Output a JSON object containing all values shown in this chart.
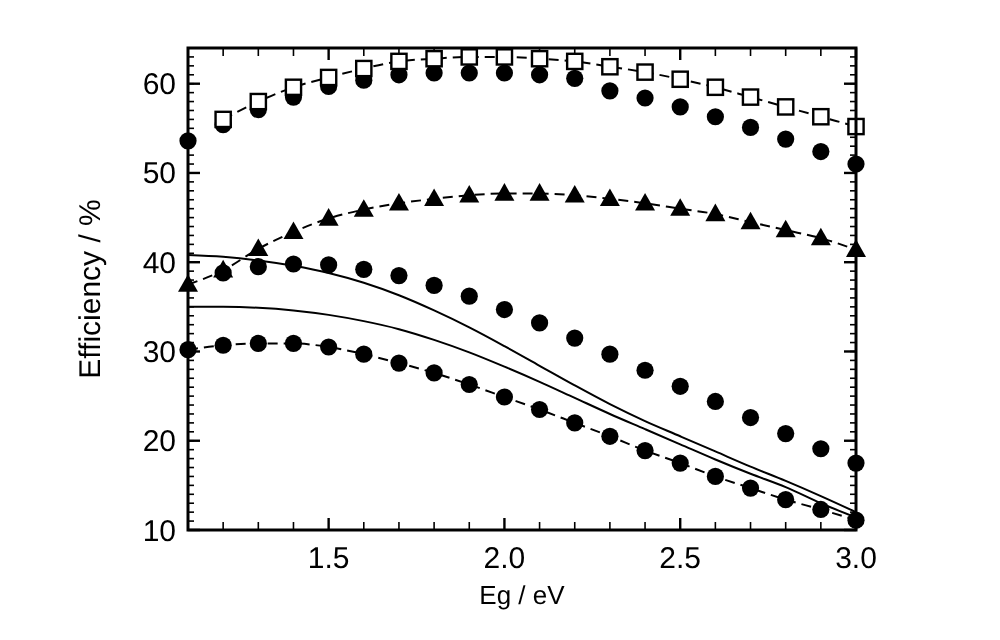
{
  "chart_data": {
    "type": "line",
    "xlabel": "Eg / eV",
    "ylabel": "Efficiency / %",
    "x": [
      1.1,
      1.2,
      1.3,
      1.4,
      1.5,
      1.6,
      1.7,
      1.8,
      1.9,
      2.0,
      2.1,
      2.2,
      2.3,
      2.4,
      2.5,
      2.6,
      2.7,
      2.8,
      2.9,
      3.0
    ],
    "xlim": [
      1.1,
      3.0
    ],
    "ylim": [
      10,
      64
    ],
    "xticks": [
      {
        "value": 1.2,
        "label": null
      },
      {
        "value": 1.3,
        "label": null
      },
      {
        "value": 1.4,
        "label": null
      },
      1.5,
      {
        "value": 1.6,
        "label": null
      },
      {
        "value": 1.7,
        "label": null
      },
      {
        "value": 1.8,
        "label": null
      },
      {
        "value": 1.9,
        "label": null
      },
      {
        "value": 2,
        "label": "2.0"
      },
      {
        "value": 2.1,
        "label": null
      },
      {
        "value": 2.2,
        "label": null
      },
      {
        "value": 2.3,
        "label": null
      },
      {
        "value": 2.4,
        "label": null
      },
      2.5,
      {
        "value": 2.6,
        "label": null
      },
      {
        "value": 2.7,
        "label": null
      },
      {
        "value": 2.8,
        "label": null
      },
      {
        "value": 2.9,
        "label": null
      },
      {
        "value": 3,
        "label": "3.0"
      }
    ],
    "yticks": [
      10,
      20,
      30,
      40,
      50,
      60
    ],
    "series": [
      {
        "type": "line",
        "marker": "square",
        "line_style": "dashed",
        "color": "#000000",
        "values": [
          null,
          56.0,
          58.0,
          59.6,
          60.7,
          61.7,
          62.5,
          62.8,
          63.0,
          63.0,
          62.8,
          62.5,
          61.9,
          61.3,
          60.5,
          59.6,
          58.5,
          57.4,
          56.3,
          55.2
        ]
      },
      {
        "type": "scatter",
        "marker": "circle",
        "color": "#000000",
        "values": [
          53.6,
          55.4,
          57.1,
          58.5,
          59.7,
          60.4,
          61.0,
          61.2,
          61.2,
          61.2,
          61.0,
          60.6,
          59.2,
          58.4,
          57.4,
          56.3,
          55.1,
          53.8,
          52.4,
          51.0
        ]
      },
      {
        "type": "line",
        "marker": "triangle",
        "line_style": "dashed",
        "color": "#000000",
        "values": [
          37.5,
          39.1,
          41.5,
          43.4,
          44.9,
          45.9,
          46.6,
          47.1,
          47.5,
          47.7,
          47.7,
          47.5,
          47.1,
          46.6,
          46.0,
          45.4,
          44.5,
          43.6,
          42.7,
          41.4
        ]
      },
      {
        "type": "scatter",
        "marker": "circle",
        "color": "#000000",
        "values": [
          null,
          38.8,
          39.5,
          39.8,
          39.7,
          39.2,
          38.5,
          37.4,
          36.2,
          34.7,
          33.2,
          31.5,
          29.7,
          27.9,
          26.1,
          24.4,
          22.6,
          20.8,
          19.1,
          17.5
        ]
      },
      {
        "type": "line",
        "marker": "none",
        "line_style": "solid",
        "color": "#000000",
        "values": [
          40.8,
          40.6,
          40.2,
          39.6,
          38.8,
          37.7,
          36.3,
          34.6,
          32.7,
          30.6,
          28.4,
          26.2,
          24.1,
          22.2,
          20.5,
          18.8,
          17.1,
          15.5,
          13.8,
          12.0
        ]
      },
      {
        "type": "line",
        "marker": "none",
        "line_style": "solid",
        "color": "#000000",
        "values": [
          35.0,
          35.0,
          34.9,
          34.6,
          34.1,
          33.4,
          32.5,
          31.3,
          29.9,
          28.3,
          26.6,
          24.8,
          23.0,
          21.3,
          19.6,
          17.9,
          16.3,
          14.8,
          13.0,
          11.4
        ]
      },
      {
        "type": "line",
        "marker": "circle",
        "line_style": "dashed",
        "color": "#000000",
        "values": [
          30.2,
          30.7,
          30.9,
          30.9,
          30.5,
          29.7,
          28.7,
          27.6,
          26.3,
          24.9,
          23.5,
          22.0,
          20.5,
          18.9,
          17.5,
          16.0,
          14.7,
          13.4,
          12.3,
          11.1
        ]
      }
    ]
  }
}
